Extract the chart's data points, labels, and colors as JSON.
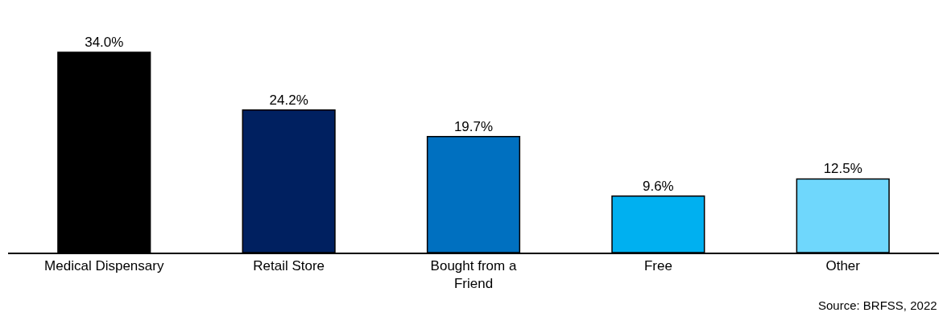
{
  "chart_data": {
    "type": "bar",
    "categories": [
      "Medical Dispensary",
      "Retail Store",
      "Bought from a Friend",
      "Free",
      "Other"
    ],
    "values": [
      34.0,
      24.2,
      19.7,
      9.6,
      12.5
    ],
    "colors": [
      "#000000",
      "#002060",
      "#0070c0",
      "#00b0f0",
      "#6fd7fc"
    ],
    "data_labels": true,
    "value_labels": [
      "34.0%",
      "24.2%",
      "19.7%",
      "9.6%",
      "12.5%"
    ],
    "legend": false,
    "annotations": [
      "Source: BRFSS, 2022"
    ]
  }
}
